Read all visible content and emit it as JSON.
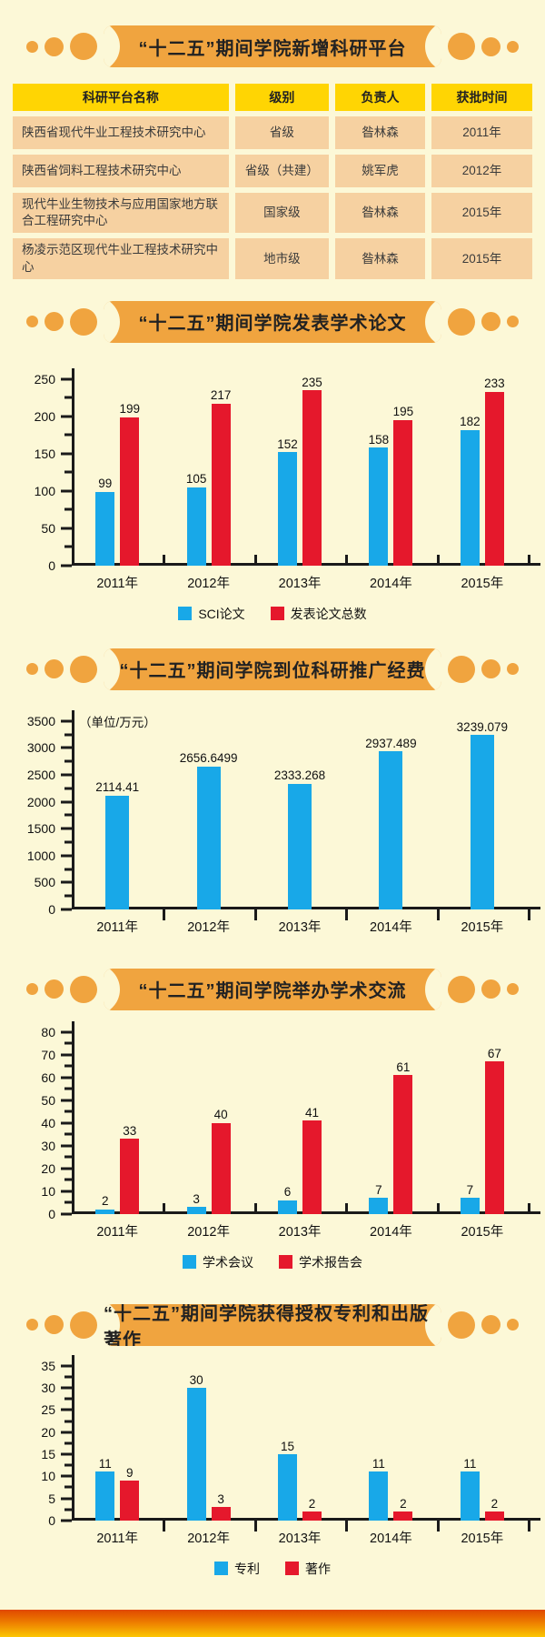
{
  "colors": {
    "background": "#FCF8D7",
    "banner_orange": "#F0A43F",
    "table_header_yellow": "#FFD503",
    "table_row_peach": "#F6D1A1",
    "bar_blue": "#18A8E8",
    "bar_red": "#E5182C",
    "axis_black": "#1A1A1A",
    "footer_gradient_top": "#E04800",
    "footer_gradient_bottom": "#FBC603"
  },
  "platforms": {
    "title": "“十二五”期间学院新增科研平台",
    "table": {
      "headers": [
        "科研平台名称",
        "级别",
        "负责人",
        "获批时间"
      ],
      "rows": [
        [
          "陕西省现代牛业工程技术研究中心",
          "省级",
          "昝林森",
          "2011年"
        ],
        [
          "陕西省饲料工程技术研究中心",
          "省级（共建）",
          "姚军虎",
          "2012年"
        ],
        [
          "现代牛业生物技术与应用国家地方联合工程研究中心",
          "国家级",
          "昝林森",
          "2015年"
        ],
        [
          "杨凌示范区现代牛业工程技术研究中心",
          "地市级",
          "昝林森",
          "2015年"
        ]
      ]
    }
  },
  "chart_data": [
    {
      "id": "papers",
      "type": "bar",
      "title": "“十二五”期间学院发表学术论文",
      "categories": [
        "2011年",
        "2012年",
        "2013年",
        "2014年",
        "2015年"
      ],
      "series": [
        {
          "name": "SCI论文",
          "color": "#18A8E8",
          "values": [
            99,
            105,
            152,
            158,
            182
          ]
        },
        {
          "name": "发表论文总数",
          "color": "#E5182C",
          "values": [
            199,
            217,
            235,
            195,
            233
          ]
        }
      ],
      "xlabel": "",
      "ylabel": "",
      "ylim": [
        0,
        250
      ],
      "ytick_step": 50,
      "grid": false,
      "legend_position": "bottom"
    },
    {
      "id": "funding",
      "type": "bar",
      "title": "“十二五”期间学院到位科研推广经费",
      "unit_label": "（单位/万元）",
      "categories": [
        "2011年",
        "2012年",
        "2013年",
        "2014年",
        "2015年"
      ],
      "series": [
        {
          "name": "",
          "color": "#18A8E8",
          "values": [
            2114.41,
            2656.6499,
            2333.268,
            2937.489,
            3239.079
          ]
        }
      ],
      "xlabel": "",
      "ylabel": "",
      "ylim": [
        0,
        3500
      ],
      "ytick_step": 500,
      "grid": false,
      "legend_position": "none"
    },
    {
      "id": "exchange",
      "type": "bar",
      "title": "“十二五”期间学院举办学术交流",
      "categories": [
        "2011年",
        "2012年",
        "2013年",
        "2014年",
        "2015年"
      ],
      "series": [
        {
          "name": "学术会议",
          "color": "#18A8E8",
          "values": [
            2,
            3,
            6,
            7,
            7
          ]
        },
        {
          "name": "学术报告会",
          "color": "#E5182C",
          "values": [
            33,
            40,
            41,
            61,
            67
          ]
        }
      ],
      "xlabel": "",
      "ylabel": "",
      "ylim": [
        0,
        80
      ],
      "ytick_step": 10,
      "grid": false,
      "legend_position": "bottom"
    },
    {
      "id": "patents",
      "type": "bar",
      "title": "“十二五”期间学院获得授权专利和出版著作",
      "categories": [
        "2011年",
        "2012年",
        "2013年",
        "2014年",
        "2015年"
      ],
      "series": [
        {
          "name": "专利",
          "color": "#18A8E8",
          "values": [
            11,
            30,
            15,
            11,
            11
          ]
        },
        {
          "name": "著作",
          "color": "#E5182C",
          "values": [
            9,
            3,
            2,
            2,
            2
          ]
        }
      ],
      "xlabel": "",
      "ylabel": "",
      "ylim": [
        0,
        35
      ],
      "ytick_step": 5,
      "grid": false,
      "legend_position": "bottom"
    }
  ]
}
